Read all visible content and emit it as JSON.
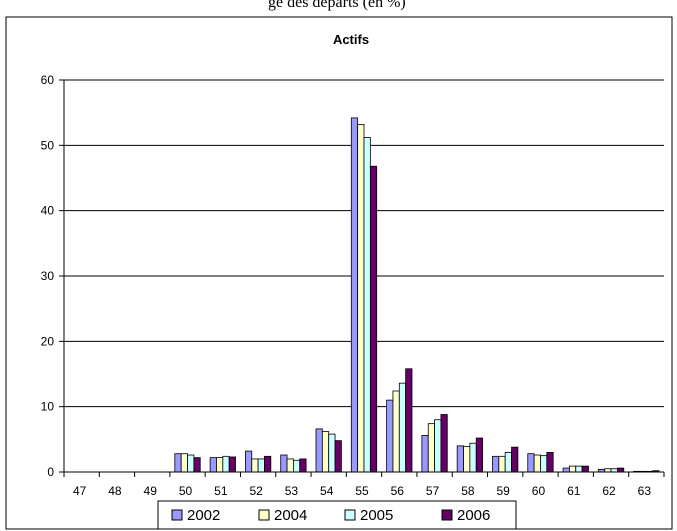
{
  "caption": "ge des départs (en %)",
  "chart_data": {
    "type": "bar",
    "title": "Actifs",
    "xlabel": "",
    "ylabel": "",
    "ylim": [
      0,
      60
    ],
    "yticks": [
      0,
      10,
      20,
      30,
      40,
      50,
      60
    ],
    "grid": true,
    "legend_position": "bottom",
    "categories": [
      "47",
      "48",
      "49",
      "50",
      "51",
      "52",
      "53",
      "54",
      "55",
      "56",
      "57",
      "58",
      "59",
      "60",
      "61",
      "62",
      "63"
    ],
    "series": [
      {
        "name": "2002",
        "color": "#9999ff",
        "values": [
          0,
          0,
          0,
          2.8,
          2.2,
          3.2,
          2.6,
          6.6,
          54.2,
          11.0,
          5.6,
          4.0,
          2.4,
          2.8,
          0.6,
          0.4,
          0.1
        ]
      },
      {
        "name": "2004",
        "color": "#ffffcc",
        "values": [
          0,
          0,
          0,
          2.8,
          2.2,
          2.0,
          2.0,
          6.2,
          53.2,
          12.4,
          7.4,
          3.9,
          2.4,
          2.6,
          0.9,
          0.5,
          0.1
        ]
      },
      {
        "name": "2005",
        "color": "#ccffff",
        "values": [
          0,
          0,
          0,
          2.6,
          2.4,
          2.0,
          1.8,
          5.8,
          51.2,
          13.6,
          8.0,
          4.4,
          3.0,
          2.5,
          0.9,
          0.5,
          0.1
        ]
      },
      {
        "name": "2006",
        "color": "#660066",
        "values": [
          0,
          0,
          0,
          2.2,
          2.3,
          2.4,
          2.0,
          4.8,
          46.8,
          15.8,
          8.8,
          5.2,
          3.8,
          3.0,
          0.9,
          0.6,
          0.2
        ]
      }
    ]
  }
}
